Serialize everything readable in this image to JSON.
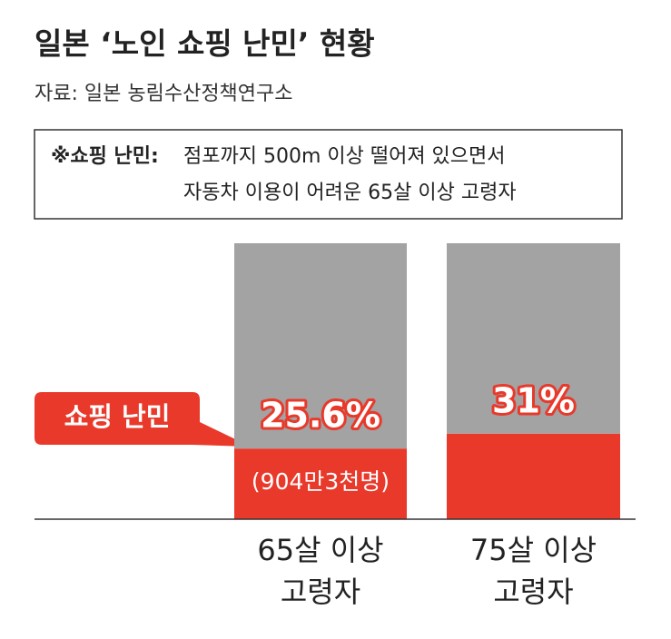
{
  "chart_data": {
    "type": "stacked_bar",
    "title": "일본 ‘노인 쇼핑 난민’ 현황",
    "source": "자료: 일본 농림수산정책연구소",
    "note": {
      "label": "※쇼핑 난민:",
      "lines": [
        "점포까지 500m 이상 떨어져 있으면서",
        "자동차 이용이 어려운 65살 이상 고령자"
      ]
    },
    "categories": [
      [
        "65살 이상",
        "고령자"
      ],
      [
        "75살 이상",
        "고령자"
      ]
    ],
    "series": [
      {
        "name": "쇼핑 난민",
        "color": "#e8392b",
        "values": [
          25.6,
          31
        ],
        "value_labels": [
          "25.6%",
          "31%"
        ]
      },
      {
        "color": "#a3a3a3",
        "values": [
          74.4,
          69
        ]
      }
    ],
    "annotation": "(904만3천명)",
    "ylim": [
      0,
      100
    ]
  }
}
